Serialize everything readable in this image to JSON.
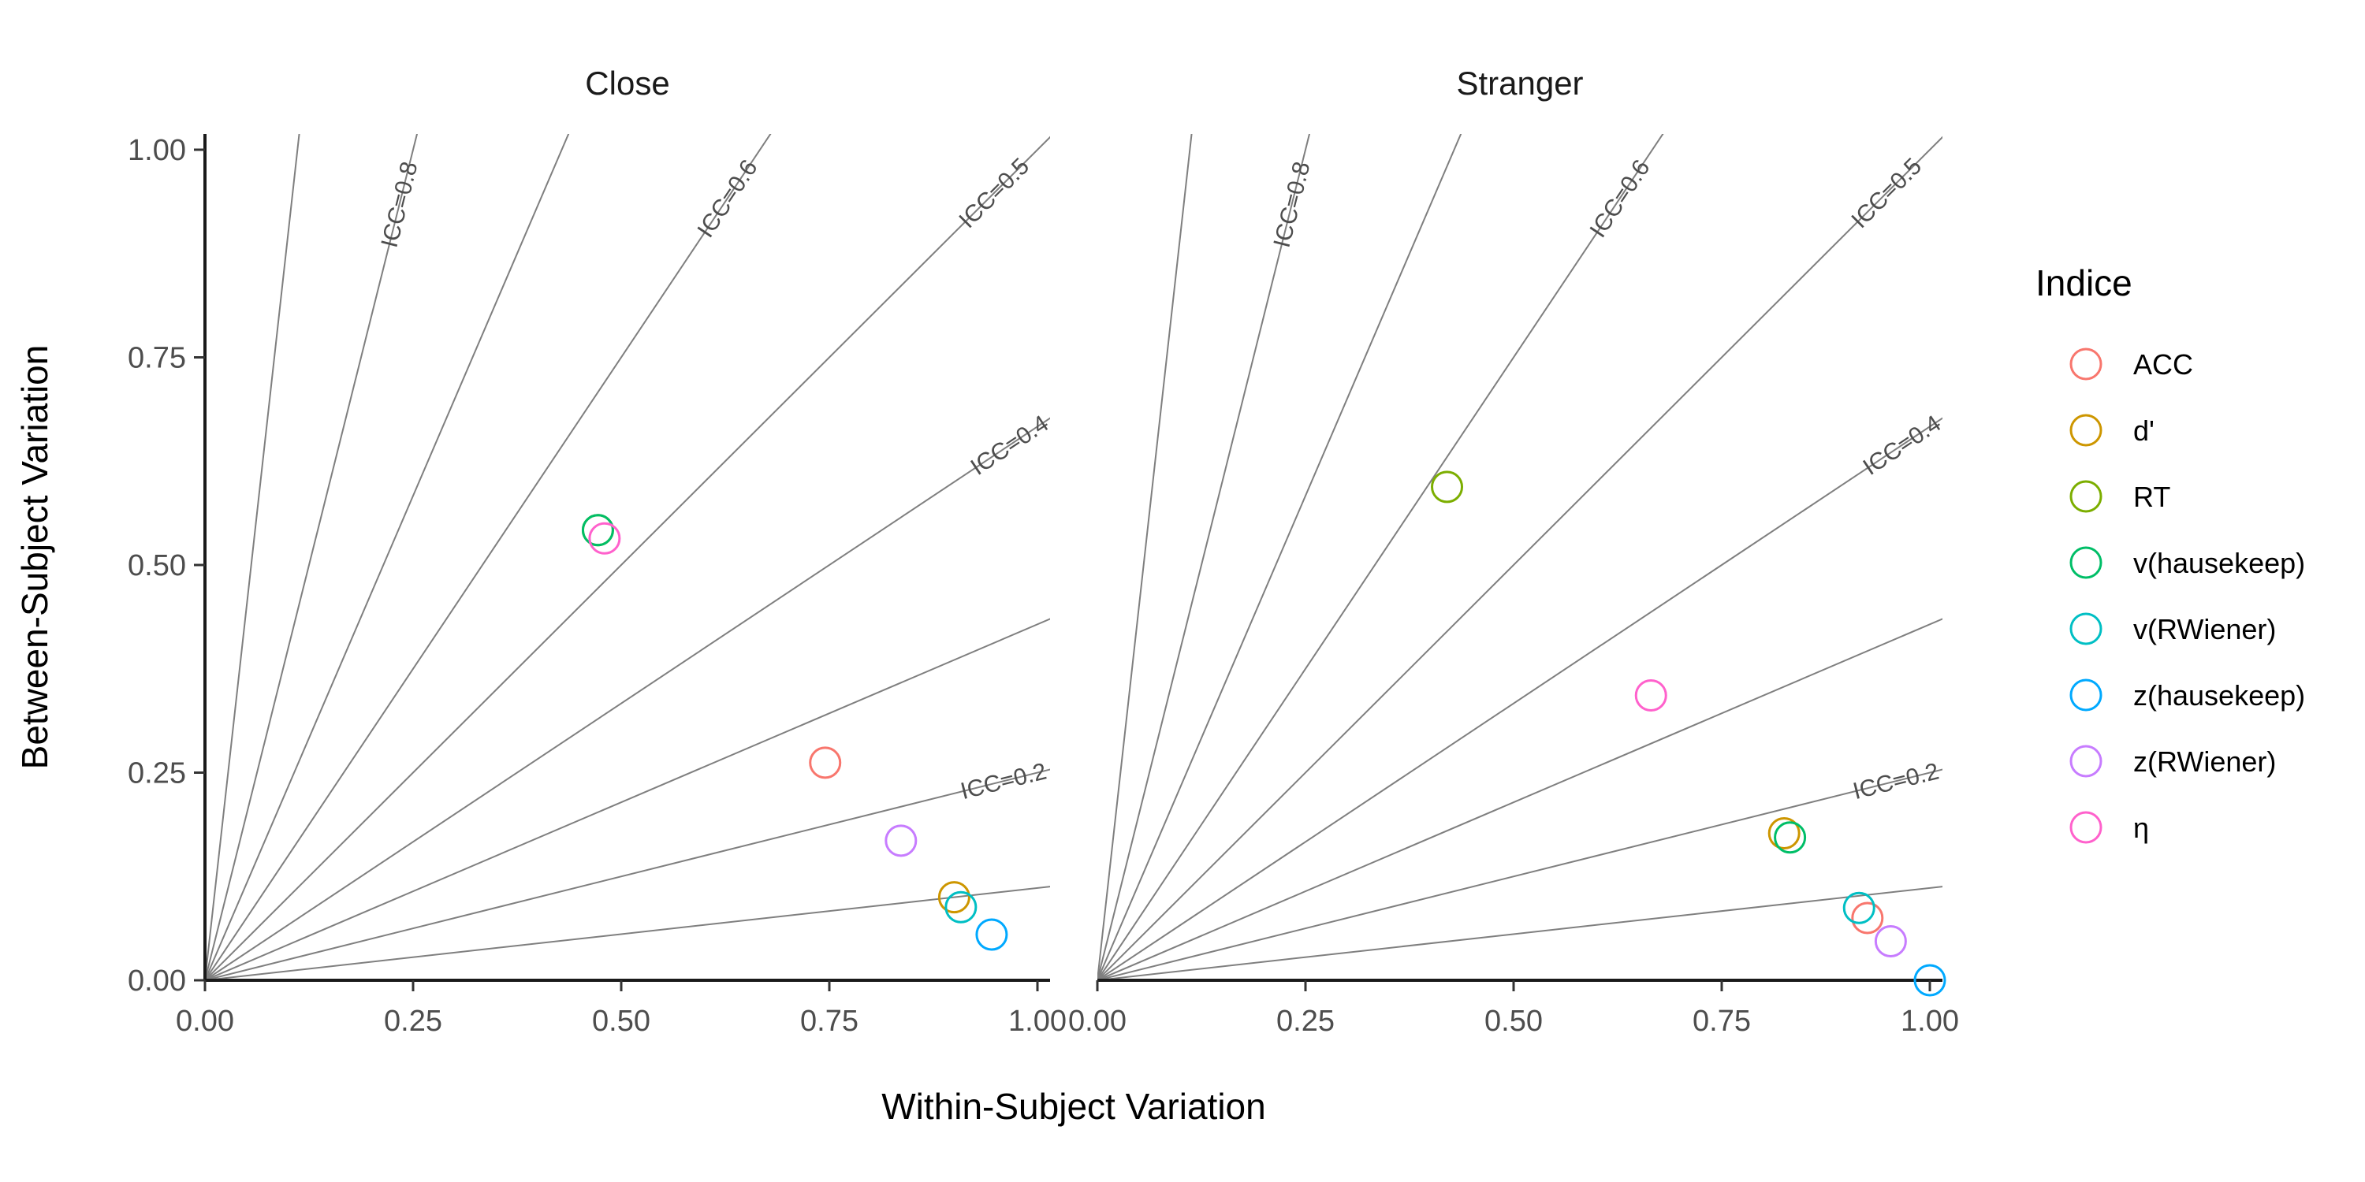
{
  "chart_data": {
    "type": "scatter",
    "xlabel": "Within-Subject Variation",
    "ylabel": "Between-Subject Variation",
    "xlim": [
      0,
      1
    ],
    "ylim": [
      0,
      1
    ],
    "x_ticks": [
      "0.00",
      "0.25",
      "0.50",
      "0.75",
      "1.00"
    ],
    "y_ticks": [
      "0.00",
      "0.25",
      "0.50",
      "0.75",
      "1.00"
    ],
    "grid": false,
    "legend": {
      "title": "Indice",
      "position": "right",
      "entries": [
        {
          "name": "ACC",
          "color": "#F8766D"
        },
        {
          "name": "d'",
          "color": "#CD9600"
        },
        {
          "name": "RT",
          "color": "#7CAE00"
        },
        {
          "name": "v(hausekeep)",
          "color": "#00BE67"
        },
        {
          "name": "v(RWiener)",
          "color": "#00BFC4"
        },
        {
          "name": "z(hausekeep)",
          "color": "#00A9FF"
        },
        {
          "name": "z(RWiener)",
          "color": "#C77CFF"
        },
        {
          "name": "η",
          "color": "#FF61CC"
        }
      ]
    },
    "reference_lines": {
      "icc_values": [
        0.1,
        0.2,
        0.3,
        0.4,
        0.5,
        0.6,
        0.7,
        0.8,
        0.9
      ],
      "labels": [
        {
          "text": "ICC=0.2",
          "icc": 0.2
        },
        {
          "text": "ICC=0.4",
          "icc": 0.4
        },
        {
          "text": "ICC=0.5",
          "icc": 0.5
        },
        {
          "text": "ICC=0.6",
          "icc": 0.6
        },
        {
          "text": "ICC=0.8",
          "icc": 0.8
        }
      ]
    },
    "panels": [
      {
        "title": "Close",
        "points": [
          {
            "series": "ACC",
            "x": 0.745,
            "y": 0.262
          },
          {
            "series": "d'",
            "x": 0.9,
            "y": 0.1
          },
          {
            "series": "RT",
            "x": 0.472,
            "y": 0.542
          },
          {
            "series": "v(hausekeep)",
            "x": 0.472,
            "y": 0.542
          },
          {
            "series": "v(RWiener)",
            "x": 0.908,
            "y": 0.088
          },
          {
            "series": "z(hausekeep)",
            "x": 0.945,
            "y": 0.055
          },
          {
            "series": "z(RWiener)",
            "x": 0.836,
            "y": 0.168
          },
          {
            "series": "η",
            "x": 0.48,
            "y": 0.532
          }
        ]
      },
      {
        "title": "Stranger",
        "points": [
          {
            "series": "ACC",
            "x": 0.925,
            "y": 0.075
          },
          {
            "series": "d'",
            "x": 0.825,
            "y": 0.177
          },
          {
            "series": "RT",
            "x": 0.42,
            "y": 0.594
          },
          {
            "series": "v(hausekeep)",
            "x": 0.832,
            "y": 0.172
          },
          {
            "series": "v(RWiener)",
            "x": 0.915,
            "y": 0.087
          },
          {
            "series": "z(hausekeep)",
            "x": 1.0,
            "y": 0.0
          },
          {
            "series": "z(RWiener)",
            "x": 0.953,
            "y": 0.047
          },
          {
            "series": "η",
            "x": 0.665,
            "y": 0.343
          }
        ]
      }
    ]
  }
}
